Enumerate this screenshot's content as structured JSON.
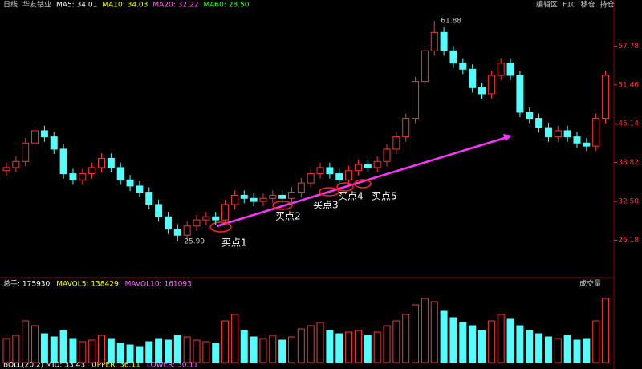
{
  "chart_data": {
    "type": "candlestick",
    "header": [
      "日线",
      "华友钴业",
      "MA5: 34.01",
      "MA10: 34.03",
      "MA20: 32.22",
      "MA60: 28.50"
    ],
    "volume_header": [
      "总手: 175930",
      "MAVOL5: 138429",
      "MAVOL10: 161093"
    ],
    "indicator_header": [
      "BOLL(20,2) MID: 33.43",
      "UPPER: 36.11",
      "LOWER: 30.11"
    ],
    "toolbar": [
      "编辑区",
      "F10",
      "移仓",
      "持仓"
    ],
    "volume_button": "成交量",
    "annotations": [
      "买点1",
      "买点2",
      "买点3",
      "买点4",
      "买点5"
    ],
    "open": [
      37.5,
      38,
      39,
      42,
      44,
      43,
      41,
      37,
      36,
      37,
      38,
      39.5,
      38,
      36,
      35,
      34,
      32,
      30,
      28,
      27,
      28.5,
      29.5,
      30,
      29.5,
      32,
      33.5,
      33,
      32.5,
      33,
      33.5,
      33,
      34,
      35.5,
      37,
      38,
      37,
      36,
      37.5,
      38.5,
      38,
      39,
      41,
      43,
      46,
      52,
      57,
      60,
      57,
      55,
      54,
      51,
      50,
      53,
      55,
      53,
      47,
      46,
      44.5,
      43,
      44,
      43,
      42,
      41.5,
      46
    ],
    "close": [
      38,
      39,
      42,
      44,
      43,
      41,
      37,
      36,
      37,
      38,
      39.5,
      38,
      36,
      35,
      34,
      32,
      30,
      28,
      27,
      28.5,
      29.5,
      30,
      29.5,
      32,
      33.5,
      33,
      32.5,
      33,
      33.5,
      33,
      34,
      35.5,
      37,
      38,
      37,
      36,
      37.5,
      38.5,
      38,
      39,
      41,
      43,
      46,
      52,
      57,
      60,
      57,
      55,
      54,
      51,
      50,
      53,
      55,
      53,
      47,
      46,
      44.5,
      43,
      44,
      43,
      42,
      41.5,
      46,
      53
    ],
    "high": [
      38.8,
      39.8,
      42.8,
      44.8,
      44.8,
      43.8,
      41.8,
      37.8,
      37.8,
      38.8,
      40.3,
      40.3,
      38.8,
      36.8,
      35.8,
      34.8,
      32.8,
      30.8,
      28.8,
      29.3,
      30.3,
      30.8,
      30.8,
      32.8,
      34.3,
      34.3,
      33.8,
      33.8,
      34.3,
      34.3,
      34.8,
      36.3,
      37.8,
      38.8,
      38.8,
      37.8,
      38.3,
      39.3,
      39.3,
      39.8,
      41.8,
      43.8,
      46.8,
      52.8,
      57.8,
      61.88,
      60.8,
      57.8,
      55.8,
      54.8,
      51.8,
      53.8,
      55.8,
      55.8,
      53.8,
      47.8,
      46.8,
      45.3,
      44.8,
      44.8,
      43.8,
      42.8,
      46.8,
      53.8
    ],
    "low": [
      36.7,
      37.2,
      38.2,
      41.2,
      42.2,
      40.2,
      36.2,
      35.2,
      35.2,
      36.2,
      37.2,
      37.2,
      35.2,
      34.2,
      33.2,
      31.2,
      29.2,
      27.2,
      25.99,
      26.2,
      27.7,
      28.7,
      28.7,
      28.7,
      31.2,
      32.2,
      31.7,
      31.7,
      32.2,
      32.2,
      32.2,
      33.2,
      34.7,
      36.2,
      36.2,
      35.2,
      35.2,
      36.7,
      37.2,
      37.2,
      38.2,
      40.2,
      42.2,
      45.2,
      51.2,
      56.2,
      56.2,
      54.2,
      53.2,
      50.2,
      49.2,
      49.2,
      52.2,
      52.2,
      46.2,
      45.2,
      43.7,
      42.2,
      42.2,
      42.2,
      41.2,
      40.7,
      40.7,
      45.2
    ],
    "volume": [
      150000,
      170000,
      260000,
      230000,
      180000,
      160000,
      200000,
      150000,
      130000,
      140000,
      170000,
      150000,
      120000,
      110000,
      100000,
      130000,
      150000,
      140000,
      170000,
      160000,
      140000,
      130000,
      120000,
      260000,
      300000,
      200000,
      160000,
      150000,
      170000,
      140000,
      160000,
      210000,
      230000,
      250000,
      200000,
      180000,
      190000,
      200000,
      170000,
      190000,
      230000,
      260000,
      300000,
      360000,
      400000,
      380000,
      320000,
      280000,
      250000,
      230000,
      200000,
      260000,
      300000,
      270000,
      230000,
      200000,
      180000,
      160000,
      150000,
      170000,
      140000,
      150000,
      260000,
      400000
    ],
    "ylim": [
      20.9,
      62.65
    ],
    "yticks": [
      26.18,
      {
        "value": 32.5,
        "label": "32.50"
      },
      38.82,
      45.14,
      51.46,
      57.78
    ],
    "volume_ylim": [
      0,
      450000
    ],
    "up_color": "#ff3232",
    "down_color": "#54fcfc",
    "grid": false
  }
}
